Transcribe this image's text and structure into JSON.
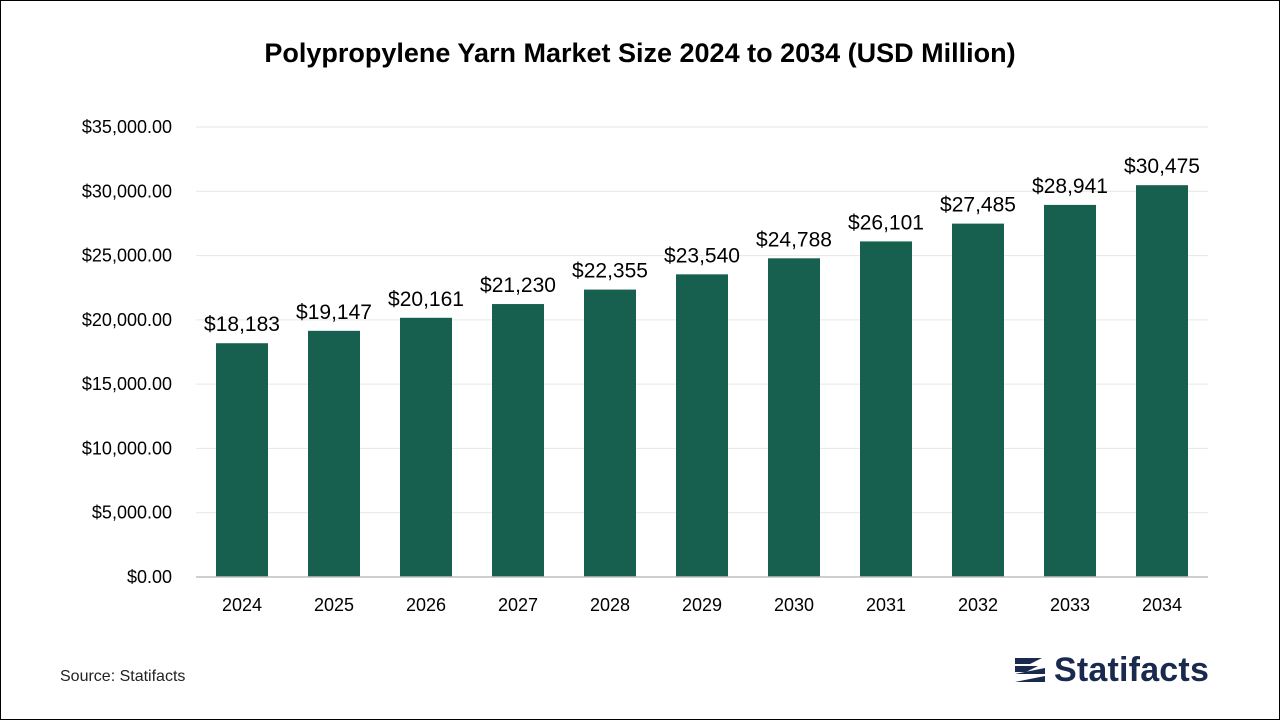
{
  "chart_data": {
    "type": "bar",
    "title": "Polypropylene Yarn Market Size 2024 to 2034 (USD Million)",
    "categories": [
      "2024",
      "2025",
      "2026",
      "2027",
      "2028",
      "2029",
      "2030",
      "2031",
      "2032",
      "2033",
      "2034"
    ],
    "values": [
      18183,
      19147,
      20161,
      21230,
      22355,
      23540,
      24788,
      26101,
      27485,
      28941,
      30475
    ],
    "data_labels": [
      "$18,183",
      "$19,147",
      "$20,161",
      "$21,230",
      "$22,355",
      "$23,540",
      "$24,788",
      "$26,101",
      "$27,485",
      "$28,941",
      "$30,475"
    ],
    "y_ticks": [
      0,
      5000,
      10000,
      15000,
      20000,
      25000,
      30000,
      35000
    ],
    "y_tick_labels": [
      "$0.00",
      "$5,000.00",
      "$10,000.00",
      "$15,000.00",
      "$20,000.00",
      "$25,000.00",
      "$30,000.00",
      "$35,000.00"
    ],
    "ylim": [
      0,
      35000
    ],
    "xlabel": "",
    "ylabel": "",
    "grid": true,
    "legend": "none",
    "bar_color": "#17604f"
  },
  "footer": {
    "source": "Source: Statifacts",
    "brand_name": "Statifacts",
    "brand_color": "#1a2a4f",
    "logo_icon": "statifacts-logo-icon"
  }
}
